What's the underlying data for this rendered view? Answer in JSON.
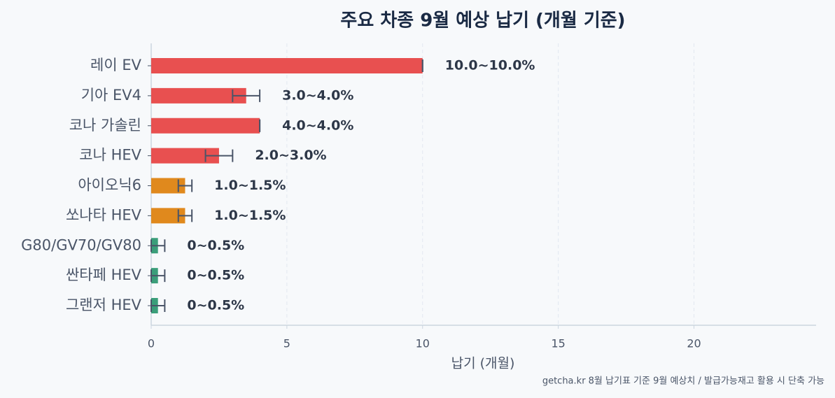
{
  "chart_data": {
    "type": "bar",
    "orientation": "horizontal",
    "title": "주요 차종 9월 예상 납기 (개월 기준)",
    "x_label": "납기 (개월)",
    "footnote": "getcha.kr 8월 납기표 기준 9월 예상치 / 발급가능재고 활용 시 단축 가능",
    "categories": [
      "레이 EV",
      "기아 EV4",
      "코나 가솔린",
      "코나 HEV",
      "아이오닉6",
      "쏘나타 HEV",
      "G80/GV70/GV80",
      "싼타페 HEV",
      "그랜저 HEV"
    ],
    "values": [
      10,
      3.5,
      4,
      2.5,
      1.25,
      1.25,
      0.25,
      0.25,
      0.25
    ],
    "errors": [
      0,
      0.5,
      0,
      0.5,
      0.25,
      0.25,
      0.25,
      0.25,
      0.25
    ],
    "value_labels": [
      "10.0~10.0%",
      "3.0~4.0%",
      "4.0~4.0%",
      "2.0~3.0%",
      "1.0~1.5%",
      "1.0~1.5%",
      "0~0.5%",
      "0~0.5%",
      "0~0.5%"
    ],
    "colors": [
      "#e85050",
      "#e85050",
      "#e85050",
      "#e85050",
      "#e0891d",
      "#e0891d",
      "#3a9e7a",
      "#3a9e7a",
      "#3a9e7a"
    ],
    "xlim": [
      0,
      24.5
    ],
    "xticks": [
      0,
      5,
      10,
      15,
      20
    ],
    "grid": true
  }
}
